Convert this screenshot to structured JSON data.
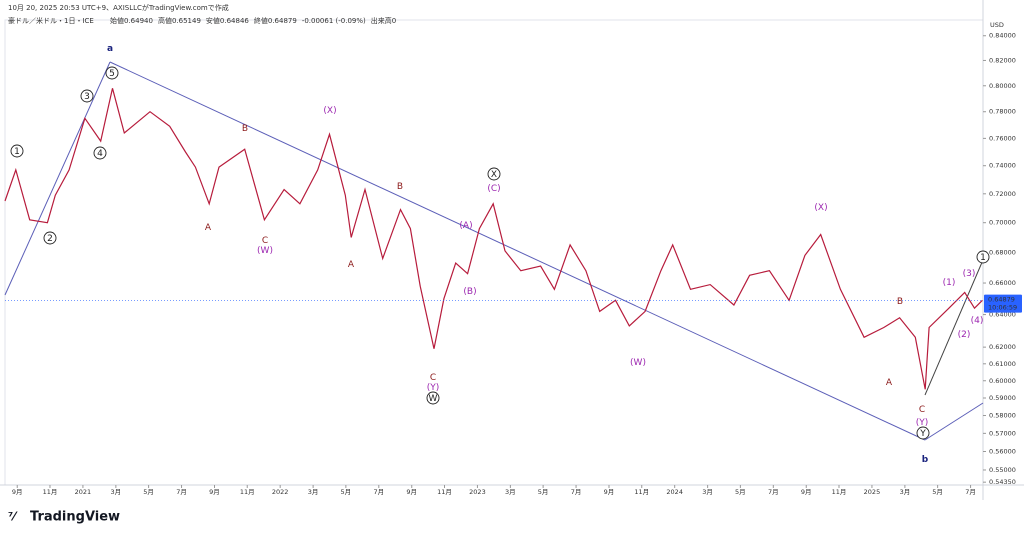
{
  "chart_data": {
    "type": "line",
    "header": {
      "created": "10月 20, 2025 20:53 UTC+9、AXISLLCがTradingView.comで作成",
      "symbol": "豪ドル／米ドル・1日・ICE",
      "ohlc": [
        "始値0.64940",
        "高値0.65149",
        "安値0.64846",
        "終値0.64879",
        "-0.00061 (-0.09%)",
        "出来高0"
      ]
    },
    "currency": "USD",
    "brand": "TradingView",
    "color": "#b71c3c",
    "log_scale": true,
    "grid": false,
    "x": [
      2020.605,
      2020.66,
      2020.73,
      2020.82,
      2020.86,
      2020.93,
      2021.01,
      2021.09,
      2021.15,
      2021.21,
      2021.34,
      2021.44,
      2021.52,
      2021.57,
      2021.64,
      2021.69,
      2021.82,
      2021.92,
      2022.02,
      2022.1,
      2022.19,
      2022.25,
      2022.33,
      2022.36,
      2022.43,
      2022.52,
      2022.61,
      2022.66,
      2022.71,
      2022.78,
      2022.83,
      2022.89,
      2022.95,
      2023.01,
      2023.08,
      2023.14,
      2023.22,
      2023.32,
      2023.39,
      2023.47,
      2023.55,
      2023.62,
      2023.7,
      2023.77,
      2023.85,
      2023.93,
      2023.99,
      2024.08,
      2024.18,
      2024.3,
      2024.38,
      2024.48,
      2024.58,
      2024.66,
      2024.74,
      2024.84,
      2024.96,
      2025.06,
      2025.14,
      2025.22,
      2025.27,
      2025.29,
      2025.39,
      2025.47,
      2025.52,
      2025.56
    ],
    "values": [
      0.715,
      0.737,
      0.702,
      0.7,
      0.719,
      0.737,
      0.775,
      0.758,
      0.798,
      0.764,
      0.78,
      0.769,
      0.75,
      0.739,
      0.713,
      0.739,
      0.752,
      0.702,
      0.723,
      0.713,
      0.737,
      0.763,
      0.719,
      0.69,
      0.723,
      0.676,
      0.709,
      0.696,
      0.658,
      0.619,
      0.65,
      0.673,
      0.666,
      0.696,
      0.713,
      0.681,
      0.668,
      0.671,
      0.656,
      0.685,
      0.668,
      0.642,
      0.649,
      0.633,
      0.642,
      0.668,
      0.685,
      0.656,
      0.659,
      0.646,
      0.665,
      0.668,
      0.649,
      0.678,
      0.692,
      0.656,
      0.626,
      0.632,
      0.638,
      0.626,
      0.595,
      0.632,
      0.644,
      0.654,
      0.644,
      0.649
    ],
    "last_price": 0.64879,
    "countdown": "10:06:59",
    "xlim": [
      2020.605,
      2025.563
    ],
    "ylim": [
      0.542,
      0.853
    ],
    "xticks": [
      {
        "value": 2020.667,
        "label": "9月"
      },
      {
        "value": 2020.833,
        "label": "11月"
      },
      2021,
      {
        "value": 2021.167,
        "label": "3月"
      },
      {
        "value": 2021.333,
        "label": "5月"
      },
      {
        "value": 2021.5,
        "label": "7月"
      },
      {
        "value": 2021.667,
        "label": "9月"
      },
      {
        "value": 2021.833,
        "label": "11月"
      },
      2022,
      {
        "value": 2022.167,
        "label": "3月"
      },
      {
        "value": 2022.333,
        "label": "5月"
      },
      {
        "value": 2022.5,
        "label": "7月"
      },
      {
        "value": 2022.667,
        "label": "9月"
      },
      {
        "value": 2022.833,
        "label": "11月"
      },
      2023,
      {
        "value": 2023.167,
        "label": "3月"
      },
      {
        "value": 2023.333,
        "label": "5月"
      },
      {
        "value": 2023.5,
        "label": "7月"
      },
      {
        "value": 2023.667,
        "label": "9月"
      },
      {
        "value": 2023.833,
        "label": "11月"
      },
      2024,
      {
        "value": 2024.167,
        "label": "3月"
      },
      {
        "value": 2024.333,
        "label": "5月"
      },
      {
        "value": 2024.5,
        "label": "7月"
      },
      {
        "value": 2024.667,
        "label": "9月"
      },
      {
        "value": 2024.833,
        "label": "11月"
      },
      2025,
      {
        "value": 2025.167,
        "label": "3月"
      },
      {
        "value": 2025.333,
        "label": "5月"
      },
      {
        "value": 2025.5,
        "label": "7月"
      }
    ],
    "yticks": [
      {
        "value": 0.84,
        "label": "0.84000"
      },
      {
        "value": 0.82,
        "label": "0.82000"
      },
      {
        "value": 0.8,
        "label": "0.80000"
      },
      {
        "value": 0.78,
        "label": "0.78000"
      },
      {
        "value": 0.76,
        "label": "0.76000"
      },
      {
        "value": 0.74,
        "label": "0.74000"
      },
      {
        "value": 0.72,
        "label": "0.72000"
      },
      {
        "value": 0.7,
        "label": "0.70000"
      },
      {
        "value": 0.68,
        "label": "0.68000"
      },
      {
        "value": 0.66,
        "label": "0.66000"
      },
      {
        "value": 0.64,
        "label": "0.64000"
      },
      {
        "value": 0.62,
        "label": "0.62000"
      },
      {
        "value": 0.61,
        "label": "0.61000"
      },
      {
        "value": 0.6,
        "label": "0.60000"
      },
      {
        "value": 0.59,
        "label": "0.59000"
      },
      {
        "value": 0.58,
        "label": "0.58000"
      },
      {
        "value": 0.57,
        "label": "0.57000"
      },
      {
        "value": 0.56,
        "label": "0.56000"
      },
      {
        "value": 0.55,
        "label": "0.55000"
      },
      {
        "value": 0.5435,
        "label": "0.54350"
      }
    ],
    "annotations": [
      {
        "text": "1",
        "color": "#222",
        "circled": true
      },
      {
        "text": "2",
        "color": "#222",
        "circled": true
      },
      {
        "text": "3",
        "color": "#222",
        "circled": true
      },
      {
        "text": "4",
        "color": "#222",
        "circled": true
      },
      {
        "text": "5",
        "color": "#222",
        "circled": true
      },
      {
        "text": "a",
        "color": "#1a237e",
        "circled": false
      },
      {
        "text": "B",
        "color": "#8b1a1a",
        "circled": false
      },
      {
        "text": "A",
        "color": "#8b1a1a",
        "circled": false
      },
      {
        "text": "C",
        "color": "#8b1a1a",
        "circled": false
      },
      {
        "text": "(W)",
        "color": "#9c27b0",
        "circled": false
      },
      {
        "text": "(X)",
        "color": "#9c27b0",
        "circled": false
      },
      {
        "text": "A",
        "color": "#8b1a1a",
        "circled": false
      },
      {
        "text": "B",
        "color": "#8b1a1a",
        "circled": false
      },
      {
        "text": "C",
        "color": "#8b1a1a",
        "circled": false
      },
      {
        "text": "(Y)",
        "color": "#9c27b0",
        "circled": false
      },
      {
        "text": "W",
        "color": "#222",
        "circled": true
      },
      {
        "text": "(A)",
        "color": "#9c27b0",
        "circled": false
      },
      {
        "text": "(B)",
        "color": "#9c27b0",
        "circled": false
      },
      {
        "text": "(C)",
        "color": "#9c27b0",
        "circled": false
      },
      {
        "text": "X",
        "color": "#222",
        "circled": true
      },
      {
        "text": "(W)",
        "color": "#9c27b0",
        "circled": false
      },
      {
        "text": "(X)",
        "color": "#9c27b0",
        "circled": false
      },
      {
        "text": "B",
        "color": "#8b1a1a",
        "circled": false
      },
      {
        "text": "A",
        "color": "#8b1a1a",
        "circled": false
      },
      {
        "text": "C",
        "color": "#8b1a1a",
        "circled": false
      },
      {
        "text": "(Y)",
        "color": "#9c27b0",
        "circled": false
      },
      {
        "text": "Y",
        "color": "#222",
        "circled": true
      },
      {
        "text": "b",
        "color": "#1a237e",
        "circled": false
      },
      {
        "text": "(1)",
        "color": "#9c27b0",
        "circled": false
      },
      {
        "text": "(2)",
        "color": "#9c27b0",
        "circled": false
      },
      {
        "text": "(3)",
        "color": "#9c27b0",
        "circled": false
      },
      {
        "text": "(4)",
        "color": "#9c27b0",
        "circled": false
      },
      {
        "text": "1",
        "color": "#222",
        "circled": true
      }
    ]
  }
}
